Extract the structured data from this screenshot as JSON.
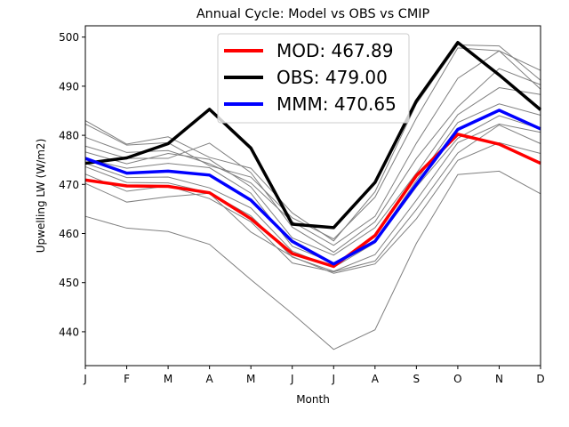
{
  "chart_data": {
    "type": "line",
    "title": "Annual Cycle: Model vs OBS vs CMIP",
    "xlabel": "Month",
    "ylabel": "Upwelling LW (W/m2)",
    "categories": [
      "J",
      "F",
      "M",
      "A",
      "M",
      "J",
      "J",
      "A",
      "S",
      "O",
      "N",
      "D"
    ],
    "ylim": [
      433.1,
      502.3
    ],
    "yticks": [
      440,
      450,
      460,
      470,
      480,
      490,
      500
    ],
    "grid": false,
    "legend_position": "top-center",
    "series": [
      {
        "name": "MOD: 467.89",
        "color": "#ff0000",
        "values": [
          470.9,
          469.7,
          469.6,
          468.3,
          463.0,
          455.9,
          453.3,
          459.6,
          471.8,
          480.2,
          478.2,
          474.3
        ]
      },
      {
        "name": "OBS: 479.00",
        "color": "#000000",
        "values": [
          474.3,
          475.4,
          478.3,
          485.3,
          477.4,
          461.9,
          461.2,
          470.4,
          487.0,
          498.9,
          492.3,
          485.2
        ]
      },
      {
        "name": "MMM: 470.65",
        "color": "#0000ff",
        "values": [
          475.3,
          472.3,
          472.7,
          471.9,
          466.8,
          458.4,
          453.8,
          458.4,
          470.0,
          481.2,
          485.1,
          481.3
        ]
      }
    ],
    "cmip_members": [
      {
        "color": "#808080",
        "values": [
          483.0,
          478.2,
          479.7,
          475.5,
          473.3,
          464.2,
          458.5,
          468.5,
          486.4,
          498.4,
          498.2,
          491.2
        ]
      },
      {
        "color": "#808080",
        "values": [
          482.3,
          478.0,
          478.5,
          473.8,
          471.5,
          463.2,
          458.9,
          467.4,
          483.5,
          497.8,
          497.2,
          493.2
        ]
      },
      {
        "color": "#808080",
        "values": [
          479.6,
          476.5,
          476.9,
          474.2,
          470.3,
          462.4,
          457.6,
          463.5,
          478.4,
          491.6,
          497.2,
          489.4
        ]
      },
      {
        "color": "#808080",
        "values": [
          477.8,
          475.3,
          475.3,
          478.4,
          472.4,
          461.3,
          456.2,
          462.4,
          475.3,
          485.8,
          493.6,
          490.3
        ]
      },
      {
        "color": "#808080",
        "values": [
          476.6,
          474.2,
          476.3,
          475.1,
          469.5,
          459.1,
          455.6,
          461.2,
          472.3,
          484.2,
          489.7,
          488.3
        ]
      },
      {
        "color": "#808080",
        "values": [
          475.2,
          473.3,
          474.3,
          473.4,
          468.2,
          457.4,
          454.0,
          458.5,
          470.8,
          482.6,
          486.4,
          484.1
        ]
      },
      {
        "color": "#808080",
        "values": [
          474.3,
          471.4,
          471.5,
          469.3,
          465.2,
          456.4,
          453.1,
          458.1,
          469.5,
          479.4,
          484.0,
          481.3
        ]
      },
      {
        "color": "#808080",
        "values": [
          473.6,
          470.4,
          470.3,
          468.3,
          463.6,
          455.2,
          452.3,
          455.7,
          466.8,
          478.5,
          482.3,
          480.6
        ]
      },
      {
        "color": "#808080",
        "values": [
          472.1,
          468.6,
          469.7,
          467.1,
          462.4,
          454.0,
          452.2,
          454.4,
          464.9,
          476.4,
          482.1,
          478.3
        ]
      },
      {
        "color": "#808080",
        "values": [
          470.2,
          466.4,
          467.5,
          468.2,
          460.3,
          455.3,
          451.9,
          453.8,
          463.0,
          474.9,
          478.5,
          476.3
        ]
      },
      {
        "color": "#808080",
        "values": [
          463.5,
          461.1,
          460.4,
          457.8,
          450.6,
          443.7,
          436.4,
          440.4,
          458.0,
          472.0,
          472.7,
          468.1
        ]
      }
    ]
  }
}
